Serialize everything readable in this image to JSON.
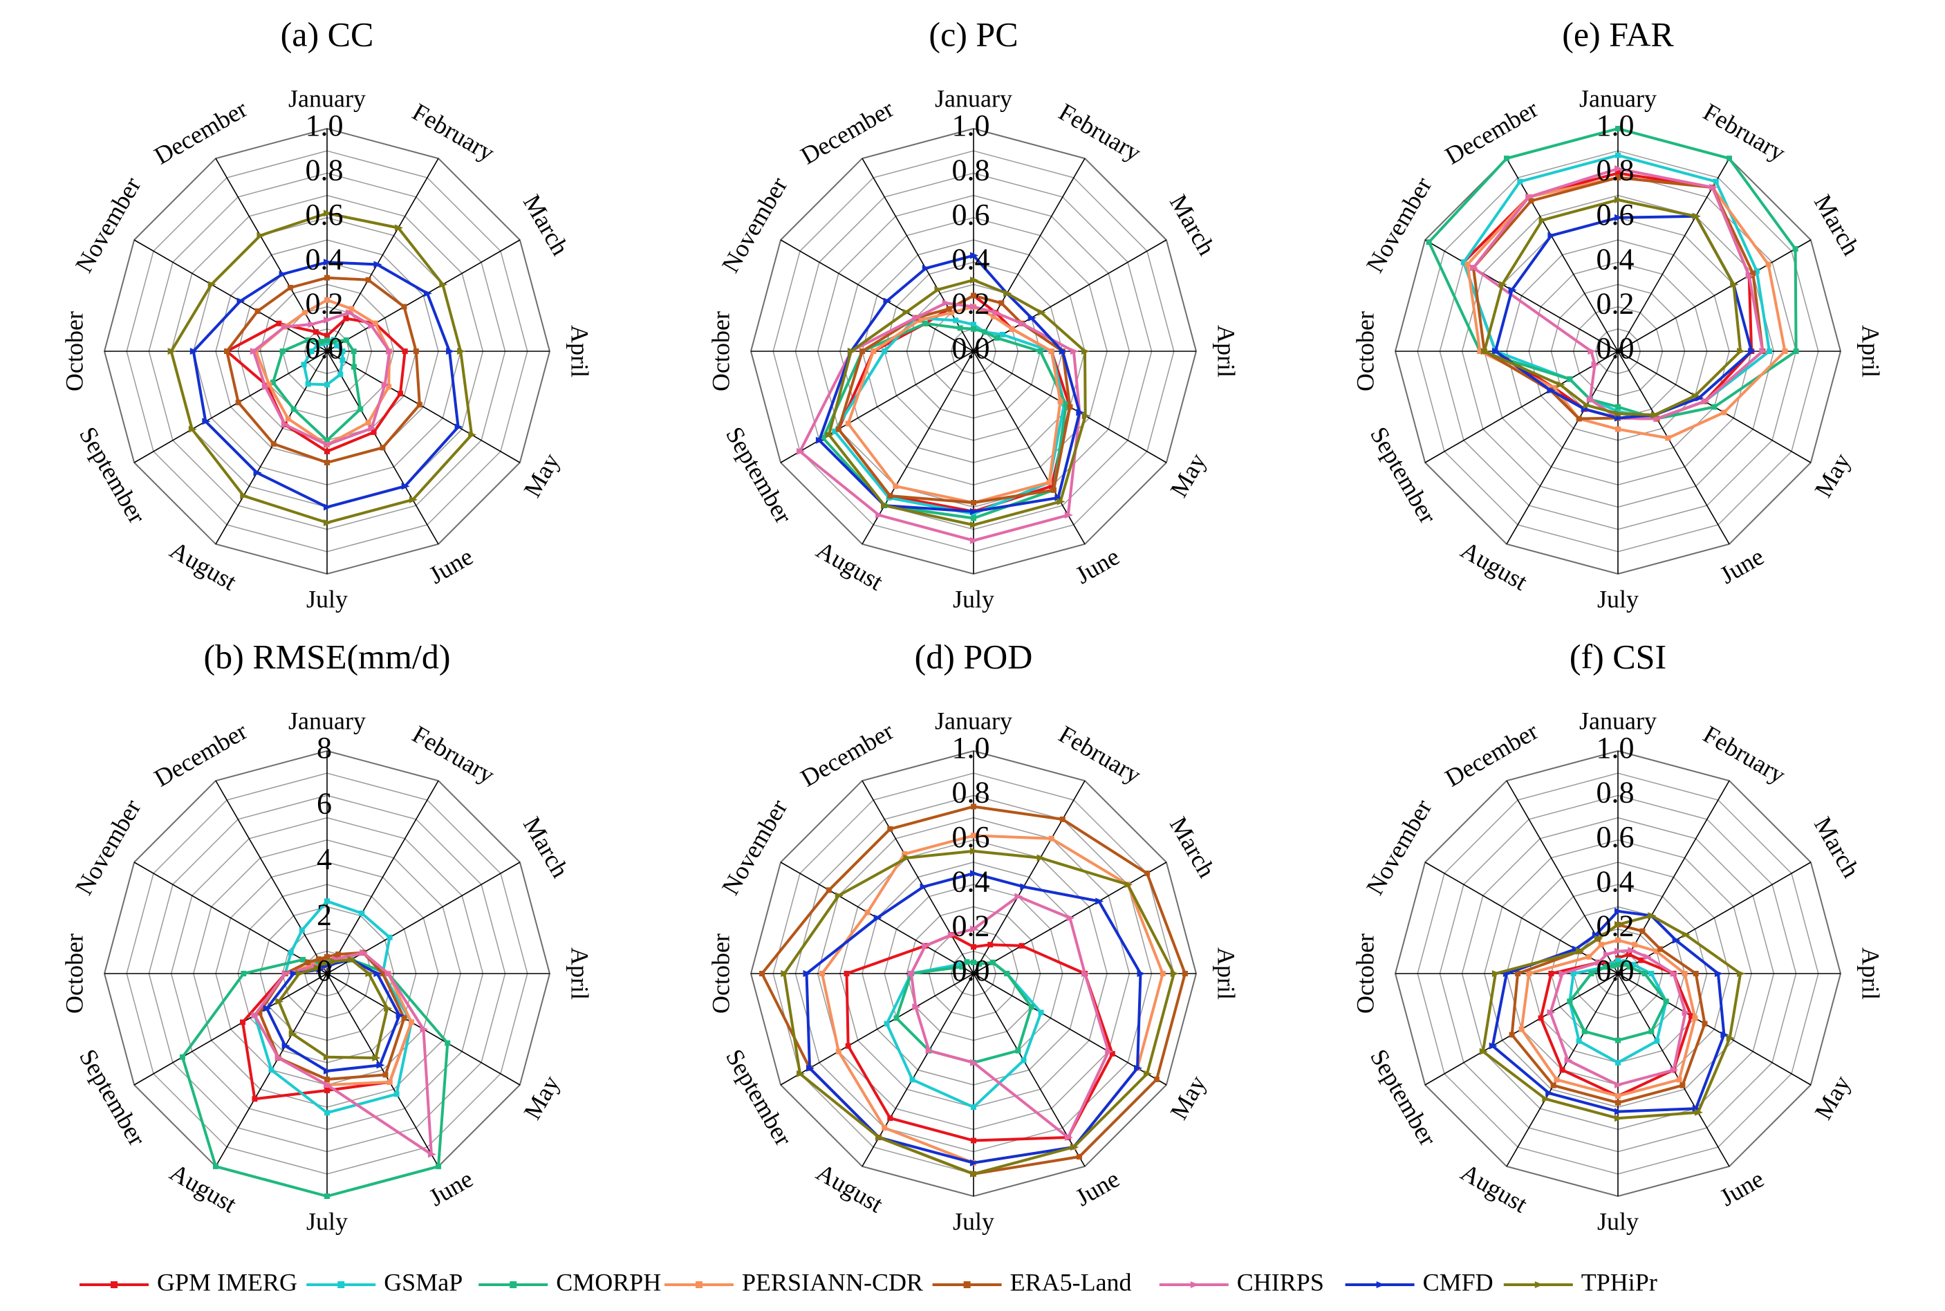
{
  "legend": [
    {
      "name": "GPM IMERG",
      "color": "#e8141b",
      "marker": "square"
    },
    {
      "name": "GSMaP",
      "color": "#1ccbd0",
      "marker": "square"
    },
    {
      "name": "CMORPH",
      "color": "#1fb87f",
      "marker": "square"
    },
    {
      "name": "PERSIANN-CDR",
      "color": "#f7905c",
      "marker": "square"
    },
    {
      "name": "ERA5-Land",
      "color": "#b45618",
      "marker": "square"
    },
    {
      "name": "CHIRPS",
      "color": "#e26aa8",
      "marker": "triangle"
    },
    {
      "name": "CMFD",
      "color": "#1330cf",
      "marker": "triangle"
    },
    {
      "name": "TPHiPr",
      "color": "#7d7a12",
      "marker": "triangle"
    }
  ],
  "chart_data": [
    {
      "type": "radar",
      "title": "(a) CC",
      "categories": [
        "January",
        "February",
        "March",
        "April",
        "May",
        "June",
        "July",
        "August",
        "September",
        "October",
        "November",
        "December"
      ],
      "ticks": [
        "0.0",
        "0.2",
        "0.4",
        "0.6",
        "0.8",
        "1.0"
      ],
      "rlim": [
        0,
        1.0
      ],
      "series": [
        {
          "name": "GPM IMERG",
          "values": [
            0.07,
            0.17,
            0.25,
            0.35,
            0.38,
            0.42,
            0.45,
            0.38,
            0.31,
            0.45,
            0.25,
            0.1
          ]
        },
        {
          "name": "GSMaP",
          "values": [
            0.04,
            0.06,
            0.05,
            0.07,
            0.08,
            0.12,
            0.15,
            0.17,
            0.12,
            0.07,
            0.05,
            0.04
          ]
        },
        {
          "name": "CMORPH",
          "values": [
            0.05,
            0.05,
            0.1,
            0.12,
            0.14,
            0.3,
            0.4,
            0.3,
            0.28,
            0.2,
            0.1,
            0.05
          ]
        },
        {
          "name": "PERSIANN-CDR",
          "values": [
            0.23,
            0.22,
            0.25,
            0.28,
            0.32,
            0.37,
            0.42,
            0.35,
            0.3,
            0.32,
            0.22,
            0.2
          ]
        },
        {
          "name": "ERA5-Land",
          "values": [
            0.33,
            0.37,
            0.4,
            0.4,
            0.48,
            0.5,
            0.5,
            0.48,
            0.46,
            0.45,
            0.36,
            0.33
          ]
        },
        {
          "name": "CHIRPS",
          "values": [
            0.14,
            0.2,
            0.23,
            0.28,
            0.3,
            0.4,
            0.42,
            0.38,
            0.32,
            0.33,
            0.22,
            0.14
          ]
        },
        {
          "name": "CMFD",
          "values": [
            0.4,
            0.45,
            0.52,
            0.55,
            0.68,
            0.7,
            0.7,
            0.63,
            0.63,
            0.6,
            0.45,
            0.4
          ]
        },
        {
          "name": "TPHiPr",
          "values": [
            0.62,
            0.64,
            0.6,
            0.6,
            0.75,
            0.77,
            0.77,
            0.75,
            0.7,
            0.7,
            0.6,
            0.6
          ]
        }
      ]
    },
    {
      "type": "radar",
      "title": "(c) PC",
      "categories": [
        "January",
        "February",
        "March",
        "April",
        "May",
        "June",
        "July",
        "August",
        "September",
        "October",
        "November",
        "December"
      ],
      "ticks": [
        "0.0",
        "0.2",
        "0.4",
        "0.6",
        "0.8",
        "1.0"
      ],
      "rlim": [
        0,
        1.0
      ],
      "series": [
        {
          "name": "GPM IMERG",
          "values": [
            0.25,
            0.2,
            0.2,
            0.35,
            0.5,
            0.7,
            0.72,
            0.75,
            0.7,
            0.45,
            0.25,
            0.22
          ]
        },
        {
          "name": "GSMaP",
          "values": [
            0.12,
            0.1,
            0.15,
            0.35,
            0.47,
            0.68,
            0.73,
            0.76,
            0.72,
            0.4,
            0.3,
            0.16
          ]
        },
        {
          "name": "CMORPH",
          "values": [
            0.1,
            0.1,
            0.12,
            0.3,
            0.48,
            0.72,
            0.75,
            0.8,
            0.78,
            0.5,
            0.25,
            0.12
          ]
        },
        {
          "name": "PERSIANN-CDR",
          "values": [
            0.2,
            0.18,
            0.2,
            0.35,
            0.45,
            0.68,
            0.68,
            0.7,
            0.65,
            0.45,
            0.28,
            0.2
          ]
        },
        {
          "name": "ERA5-Land",
          "values": [
            0.25,
            0.25,
            0.25,
            0.4,
            0.5,
            0.72,
            0.68,
            0.75,
            0.7,
            0.5,
            0.3,
            0.22
          ]
        },
        {
          "name": "CHIRPS",
          "values": [
            0.2,
            0.2,
            0.25,
            0.45,
            0.55,
            0.85,
            0.85,
            0.85,
            0.9,
            0.55,
            0.3,
            0.25
          ]
        },
        {
          "name": "CMFD",
          "values": [
            0.43,
            0.3,
            0.3,
            0.4,
            0.55,
            0.76,
            0.72,
            0.8,
            0.8,
            0.55,
            0.45,
            0.43
          ]
        },
        {
          "name": "TPHiPr",
          "values": [
            0.32,
            0.3,
            0.35,
            0.5,
            0.58,
            0.78,
            0.78,
            0.8,
            0.75,
            0.55,
            0.35,
            0.32
          ]
        }
      ]
    },
    {
      "type": "radar",
      "title": "(e) FAR",
      "categories": [
        "January",
        "February",
        "March",
        "April",
        "May",
        "June",
        "July",
        "August",
        "September",
        "October",
        "November",
        "December"
      ],
      "ticks": [
        "0.0",
        "0.2",
        "0.4",
        "0.6",
        "0.8",
        "1.0"
      ],
      "rlim": [
        0,
        1.0
      ],
      "series": [
        {
          "name": "GPM IMERG",
          "values": [
            0.8,
            0.85,
            0.68,
            0.6,
            0.45,
            0.35,
            0.3,
            0.3,
            0.33,
            0.55,
            0.8,
            0.8
          ]
        },
        {
          "name": "GSMaP",
          "values": [
            0.88,
            0.88,
            0.72,
            0.68,
            0.45,
            0.35,
            0.27,
            0.25,
            0.25,
            0.55,
            0.8,
            0.88
          ]
        },
        {
          "name": "CMORPH",
          "values": [
            1.0,
            1.0,
            0.92,
            0.8,
            0.5,
            0.35,
            0.25,
            0.25,
            0.25,
            0.62,
            0.98,
            1.0
          ]
        },
        {
          "name": "PERSIANN-CDR",
          "values": [
            0.78,
            0.85,
            0.78,
            0.75,
            0.55,
            0.45,
            0.35,
            0.35,
            0.33,
            0.62,
            0.78,
            0.8
          ]
        },
        {
          "name": "ERA5-Land",
          "values": [
            0.78,
            0.85,
            0.7,
            0.65,
            0.45,
            0.35,
            0.3,
            0.35,
            0.35,
            0.6,
            0.75,
            0.78
          ]
        },
        {
          "name": "CHIRPS",
          "values": [
            0.82,
            0.85,
            0.68,
            0.65,
            0.45,
            0.35,
            0.3,
            0.25,
            0.12,
            0.12,
            0.75,
            0.8
          ]
        },
        {
          "name": "CMFD",
          "values": [
            0.6,
            0.7,
            0.6,
            0.6,
            0.42,
            0.33,
            0.3,
            0.3,
            0.35,
            0.55,
            0.55,
            0.6
          ]
        },
        {
          "name": "TPHiPr",
          "values": [
            0.68,
            0.7,
            0.6,
            0.55,
            0.4,
            0.33,
            0.28,
            0.28,
            0.3,
            0.6,
            0.6,
            0.68
          ]
        }
      ]
    },
    {
      "type": "radar",
      "title": "(b) RMSE(mm/d)",
      "categories": [
        "January",
        "February",
        "March",
        "April",
        "May",
        "June",
        "July",
        "August",
        "September",
        "October",
        "November",
        "December"
      ],
      "ticks": [
        "0",
        "2",
        "4",
        "6",
        "8"
      ],
      "rlim": [
        0,
        8
      ],
      "series": [
        {
          "name": "GPM IMERG",
          "values": [
            0.5,
            0.6,
            1.5,
            2.0,
            3.5,
            4.5,
            4.2,
            5.2,
            3.5,
            1.5,
            0.8,
            0.5
          ]
        },
        {
          "name": "GSMaP",
          "values": [
            2.6,
            2.5,
            2.6,
            2.0,
            3.5,
            5.0,
            5.0,
            4.0,
            3.0,
            1.5,
            1.5,
            1.8
          ]
        },
        {
          "name": "CMORPH",
          "values": [
            0.5,
            0.5,
            1.0,
            2.2,
            5.0,
            8.5,
            8.5,
            8.5,
            6.0,
            3.0,
            1.0,
            0.4
          ]
        },
        {
          "name": "PERSIANN-CDR",
          "values": [
            0.3,
            0.5,
            1.5,
            2.2,
            3.5,
            4.5,
            4.0,
            3.5,
            2.8,
            1.5,
            0.6,
            0.3
          ]
        },
        {
          "name": "ERA5-Land",
          "values": [
            0.6,
            0.8,
            1.5,
            2.0,
            3.2,
            4.2,
            3.8,
            3.5,
            2.8,
            1.5,
            0.8,
            0.6
          ]
        },
        {
          "name": "CHIRPS",
          "values": [
            0.4,
            0.6,
            1.5,
            2.2,
            4.0,
            7.5,
            4.0,
            3.5,
            3.0,
            1.5,
            0.5,
            0.4
          ]
        },
        {
          "name": "CMFD",
          "values": [
            0.3,
            0.4,
            1.0,
            1.8,
            3.0,
            3.8,
            3.5,
            3.0,
            2.5,
            1.2,
            0.3,
            0.3
          ]
        },
        {
          "name": "TPHiPr",
          "values": [
            0.4,
            0.5,
            1.0,
            1.5,
            2.5,
            3.5,
            3.0,
            2.5,
            2.0,
            1.0,
            0.4,
            0.4
          ]
        }
      ]
    },
    {
      "type": "radar",
      "title": "(d) POD",
      "categories": [
        "January",
        "February",
        "March",
        "April",
        "May",
        "June",
        "July",
        "August",
        "September",
        "October",
        "November",
        "December"
      ],
      "ticks": [
        "0.0",
        "0.2",
        "0.4",
        "0.6",
        "0.8",
        "1.0"
      ],
      "rlim": [
        0,
        1.0
      ],
      "series": [
        {
          "name": "GPM IMERG",
          "values": [
            0.12,
            0.15,
            0.25,
            0.5,
            0.72,
            0.85,
            0.75,
            0.75,
            0.65,
            0.57,
            0.25,
            0.2
          ]
        },
        {
          "name": "GSMaP",
          "values": [
            0.05,
            0.05,
            0.1,
            0.15,
            0.35,
            0.45,
            0.6,
            0.55,
            0.45,
            0.28,
            0.08,
            0.06
          ]
        },
        {
          "name": "CMORPH",
          "values": [
            0.05,
            0.05,
            0.1,
            0.15,
            0.3,
            0.4,
            0.4,
            0.4,
            0.4,
            0.28,
            0.06,
            0.06
          ]
        },
        {
          "name": "PERSIANN-CDR",
          "values": [
            0.62,
            0.7,
            0.8,
            0.85,
            0.85,
            0.9,
            0.85,
            0.8,
            0.7,
            0.68,
            0.55,
            0.62
          ]
        },
        {
          "name": "ERA5-Land",
          "values": [
            0.75,
            0.8,
            0.9,
            0.95,
            0.95,
            0.95,
            0.9,
            0.85,
            0.85,
            0.95,
            0.75,
            0.75
          ]
        },
        {
          "name": "CHIRPS",
          "values": [
            0.2,
            0.4,
            0.5,
            0.5,
            0.7,
            0.85,
            0.4,
            0.4,
            0.3,
            0.28,
            0.25,
            0.2
          ]
        },
        {
          "name": "CMFD",
          "values": [
            0.45,
            0.45,
            0.65,
            0.75,
            0.85,
            0.9,
            0.85,
            0.85,
            0.85,
            0.75,
            0.5,
            0.45
          ]
        },
        {
          "name": "TPHiPr",
          "values": [
            0.55,
            0.6,
            0.8,
            0.9,
            0.9,
            0.9,
            0.9,
            0.85,
            0.9,
            0.85,
            0.7,
            0.6
          ]
        }
      ]
    },
    {
      "type": "radar",
      "title": "(f) CSI",
      "categories": [
        "January",
        "February",
        "March",
        "April",
        "May",
        "June",
        "July",
        "August",
        "September",
        "October",
        "November",
        "December"
      ],
      "ticks": [
        "0.0",
        "0.2",
        "0.4",
        "0.6",
        "0.8",
        "1.0"
      ],
      "rlim": [
        0,
        1.0
      ],
      "series": [
        {
          "name": "GPM IMERG",
          "values": [
            0.07,
            0.1,
            0.12,
            0.25,
            0.38,
            0.5,
            0.55,
            0.5,
            0.4,
            0.3,
            0.1,
            0.05
          ]
        },
        {
          "name": "GSMaP",
          "values": [
            0.06,
            0.06,
            0.08,
            0.15,
            0.25,
            0.35,
            0.4,
            0.35,
            0.25,
            0.2,
            0.06,
            0.05
          ]
        },
        {
          "name": "CMORPH",
          "values": [
            0.04,
            0.05,
            0.06,
            0.12,
            0.25,
            0.3,
            0.3,
            0.3,
            0.25,
            0.12,
            0.06,
            0.04
          ]
        },
        {
          "name": "PERSIANN-CDR",
          "values": [
            0.15,
            0.15,
            0.2,
            0.3,
            0.4,
            0.55,
            0.55,
            0.55,
            0.5,
            0.4,
            0.15,
            0.15
          ]
        },
        {
          "name": "ERA5-Land",
          "values": [
            0.22,
            0.22,
            0.22,
            0.35,
            0.45,
            0.58,
            0.58,
            0.58,
            0.55,
            0.45,
            0.2,
            0.18
          ]
        },
        {
          "name": "CHIRPS",
          "values": [
            0.1,
            0.12,
            0.15,
            0.25,
            0.35,
            0.5,
            0.5,
            0.45,
            0.35,
            0.25,
            0.1,
            0.1
          ]
        },
        {
          "name": "CMFD",
          "values": [
            0.28,
            0.3,
            0.3,
            0.45,
            0.55,
            0.7,
            0.62,
            0.62,
            0.65,
            0.5,
            0.22,
            0.2
          ]
        },
        {
          "name": "TPHiPr",
          "values": [
            0.22,
            0.3,
            0.35,
            0.55,
            0.58,
            0.72,
            0.65,
            0.65,
            0.7,
            0.55,
            0.2,
            0.18
          ]
        }
      ]
    }
  ]
}
